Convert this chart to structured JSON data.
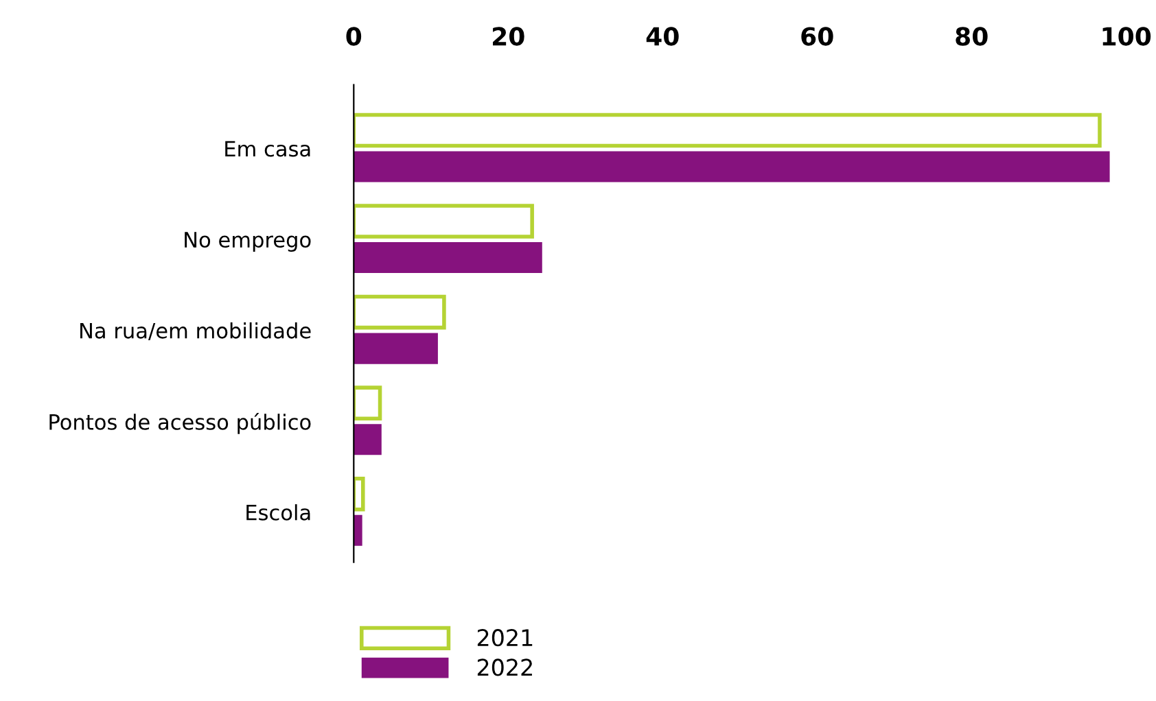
{
  "chart_data": {
    "type": "bar",
    "orientation": "horizontal",
    "categories": [
      "Em casa",
      "No emprego",
      "Na rua/em mobilidade",
      "Pontos de acesso público",
      "Escola"
    ],
    "series": [
      {
        "name": "2021",
        "color": "#b5d334",
        "values": [
          96.6,
          23.1,
          11.7,
          3.4,
          1.2
        ]
      },
      {
        "name": "2022",
        "color": "#86127e",
        "values": [
          97.9,
          24.4,
          10.9,
          3.6,
          1.1
        ]
      }
    ],
    "xlim": [
      0,
      100
    ],
    "xticks": [
      0,
      20,
      40,
      60,
      80,
      100
    ],
    "grid": false,
    "legend": "bottom left"
  }
}
